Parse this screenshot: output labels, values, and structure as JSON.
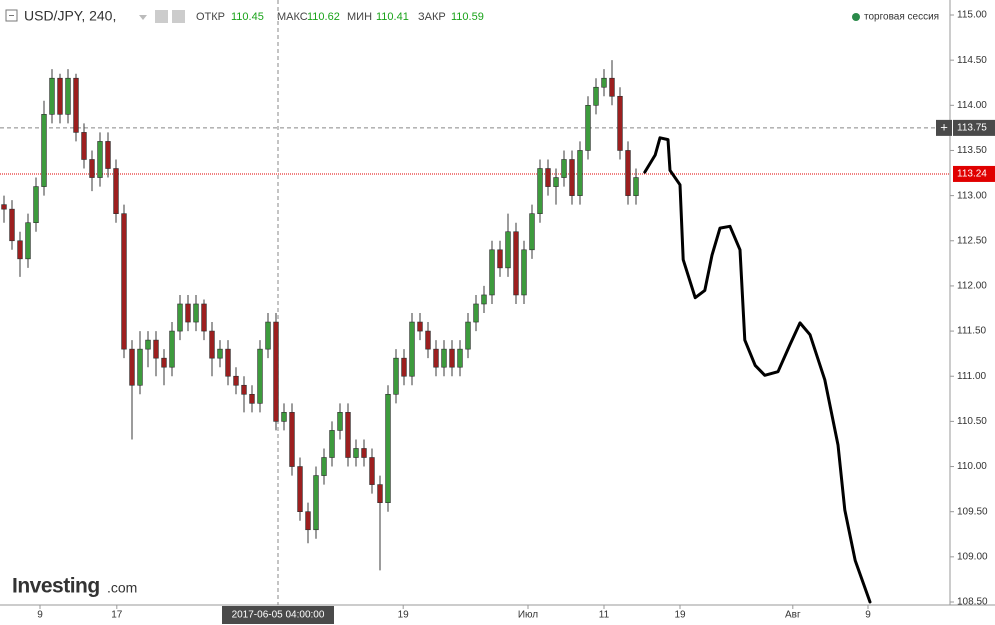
{
  "header": {
    "symbol": "USD/JPY, 240,",
    "open_label": "ОТКР",
    "open": 110.45,
    "high_label": "МАКС",
    "high": 110.62,
    "low_label": "МИН",
    "low": 110.41,
    "close_label": "ЗАКР",
    "close": 110.59,
    "session": "торговая сессия",
    "logo": "Investing",
    "logo_suffix": ".com"
  },
  "chart_data": {
    "type": "candlestick",
    "x": [
      0,
      1,
      2,
      3,
      4,
      5,
      6,
      7,
      8,
      9,
      10,
      11,
      12,
      13,
      14,
      15,
      16,
      17,
      18,
      19,
      20,
      21,
      22,
      23,
      24,
      25,
      26,
      27,
      28,
      29,
      30,
      31,
      32,
      33,
      34,
      35,
      36,
      37,
      38,
      39,
      40,
      41,
      42,
      43,
      44,
      45,
      46,
      47,
      48,
      49,
      50,
      51,
      52,
      53,
      54,
      55,
      56,
      57,
      58,
      59,
      60,
      61,
      62,
      63,
      64,
      65,
      66,
      67,
      68,
      69,
      70,
      71,
      72,
      73,
      74,
      75,
      76,
      77,
      78,
      79
    ],
    "open": [
      112.9,
      112.85,
      112.5,
      112.3,
      112.7,
      113.1,
      113.9,
      114.3,
      113.9,
      114.3,
      113.7,
      113.4,
      113.2,
      113.6,
      113.3,
      112.8,
      111.3,
      110.9,
      111.3,
      111.4,
      111.2,
      111.1,
      111.5,
      111.8,
      111.6,
      111.8,
      111.5,
      111.2,
      111.3,
      111.0,
      110.9,
      110.8,
      110.7,
      111.3,
      111.6,
      110.5,
      110.6,
      110.0,
      109.5,
      109.3,
      109.9,
      110.1,
      110.4,
      110.6,
      110.1,
      110.2,
      110.1,
      109.8,
      109.6,
      110.8,
      111.2,
      111.0,
      111.6,
      111.5,
      111.3,
      111.1,
      111.3,
      111.1,
      111.3,
      111.6,
      111.8,
      111.9,
      112.4,
      112.2,
      112.6,
      111.9,
      112.4,
      112.8,
      113.3,
      113.1,
      113.2,
      113.4,
      113.0,
      113.5,
      114.0,
      114.2,
      114.3,
      114.1,
      113.5,
      113.0
    ],
    "high": [
      113.0,
      112.95,
      112.6,
      112.8,
      113.2,
      114.05,
      114.4,
      114.35,
      114.4,
      114.35,
      113.8,
      113.5,
      113.7,
      113.7,
      113.4,
      112.9,
      111.4,
      111.5,
      111.5,
      111.5,
      111.3,
      111.6,
      111.9,
      111.9,
      111.9,
      111.85,
      111.6,
      111.4,
      111.4,
      111.1,
      111.0,
      110.9,
      111.4,
      111.7,
      111.7,
      110.7,
      110.7,
      110.1,
      109.6,
      110.0,
      110.2,
      110.5,
      110.7,
      110.7,
      110.3,
      110.3,
      110.2,
      109.9,
      110.9,
      111.3,
      111.3,
      111.7,
      111.7,
      111.6,
      111.4,
      111.4,
      111.4,
      111.4,
      111.7,
      111.9,
      112.0,
      112.5,
      112.5,
      112.8,
      112.7,
      112.5,
      112.9,
      113.4,
      113.4,
      113.3,
      113.5,
      113.5,
      113.6,
      114.1,
      114.3,
      114.4,
      114.5,
      114.2,
      113.6,
      113.3
    ],
    "low": [
      112.7,
      112.4,
      112.1,
      112.2,
      112.6,
      113.0,
      113.8,
      113.8,
      113.8,
      113.6,
      113.3,
      113.05,
      113.1,
      113.2,
      112.7,
      111.2,
      110.3,
      110.8,
      111.1,
      111.0,
      110.9,
      111.0,
      111.4,
      111.5,
      111.5,
      111.4,
      111.0,
      111.1,
      110.9,
      110.8,
      110.6,
      110.6,
      110.6,
      111.2,
      110.4,
      110.4,
      109.9,
      109.4,
      109.15,
      109.2,
      109.8,
      110.0,
      110.3,
      110.0,
      110.0,
      110.0,
      109.7,
      108.85,
      109.5,
      110.7,
      110.9,
      110.9,
      111.4,
      111.2,
      111.0,
      111.0,
      111.0,
      111.0,
      111.2,
      111.5,
      111.7,
      111.8,
      112.1,
      112.1,
      111.8,
      111.8,
      112.3,
      112.7,
      113.0,
      112.9,
      113.1,
      112.9,
      112.9,
      113.4,
      113.9,
      114.1,
      114.0,
      113.4,
      112.9,
      112.9
    ],
    "close": [
      112.85,
      112.5,
      112.3,
      112.7,
      113.1,
      113.9,
      114.3,
      113.9,
      114.3,
      113.7,
      113.4,
      113.2,
      113.6,
      113.3,
      112.8,
      111.3,
      110.9,
      111.3,
      111.4,
      111.2,
      111.1,
      111.5,
      111.8,
      111.6,
      111.8,
      111.5,
      111.2,
      111.3,
      111.0,
      110.9,
      110.8,
      110.7,
      111.3,
      111.6,
      110.5,
      110.6,
      110.0,
      109.5,
      109.3,
      109.9,
      110.1,
      110.4,
      110.6,
      110.1,
      110.2,
      110.1,
      109.8,
      109.6,
      110.8,
      111.2,
      111.0,
      111.6,
      111.5,
      111.3,
      111.1,
      111.3,
      111.1,
      111.3,
      111.6,
      111.8,
      111.9,
      112.4,
      112.2,
      112.6,
      111.9,
      112.4,
      112.8,
      113.3,
      113.1,
      113.2,
      113.4,
      113.0,
      113.5,
      114.0,
      114.2,
      114.3,
      114.1,
      113.5,
      113.0,
      113.2
    ],
    "up_color": "#3d9b3d",
    "down_color": "#9c1f1f",
    "wick_color": "#3a3a3a",
    "drawing": {
      "color": "#000000",
      "x": [
        80.1,
        81.4,
        82,
        83,
        83.25,
        84.5,
        84.9,
        86.4,
        87.6,
        88.5,
        89.5,
        90.75,
        92,
        92.6,
        93.9,
        95.1,
        96.75,
        98.25,
        99.5,
        100.75,
        102.6,
        104.25,
        105.1,
        106.4,
        108.25
      ],
      "values": [
        113.26,
        113.45,
        113.64,
        113.62,
        113.28,
        113.12,
        112.29,
        111.87,
        111.95,
        112.34,
        112.64,
        112.66,
        112.4,
        111.4,
        111.12,
        111.01,
        111.05,
        111.35,
        111.59,
        111.46,
        110.96,
        110.24,
        109.52,
        108.96,
        108.5
      ]
    },
    "xlim": [
      -0.5,
      118.25
    ],
    "xticks": [
      {
        "value": 4.5,
        "label": "9"
      },
      {
        "value": 14.1,
        "label": "17"
      },
      {
        "value": 49.9,
        "label": "19"
      },
      {
        "value": 65.5,
        "label": "Июл"
      },
      {
        "value": 75,
        "label": "11"
      },
      {
        "value": 84.5,
        "label": "19"
      },
      {
        "value": 98.6,
        "label": "Авг"
      },
      {
        "value": 108,
        "label": "9"
      }
    ],
    "ylim": [
      108.5,
      115.0
    ],
    "yticks": [
      {
        "value": 108.5,
        "label": "108.50"
      },
      {
        "value": 109,
        "label": "109.00"
      },
      {
        "value": 109.5,
        "label": "109.50"
      },
      {
        "value": 110,
        "label": "110.00"
      },
      {
        "value": 110.5,
        "label": "110.50"
      },
      {
        "value": 111,
        "label": "111.00"
      },
      {
        "value": 111.5,
        "label": "111.50"
      },
      {
        "value": 112,
        "label": "112.00"
      },
      {
        "value": 112.5,
        "label": "112.50"
      },
      {
        "value": 113,
        "label": "113.00"
      },
      {
        "value": 113.5,
        "label": "113.50"
      },
      {
        "value": 114,
        "label": "114.00"
      },
      {
        "value": 114.5,
        "label": "114.50"
      },
      {
        "value": 115,
        "label": "115.00"
      }
    ],
    "crosshair": {
      "x": 34.25,
      "x_label": "2017-06-05 04:00:00",
      "y": 113.75
    },
    "last_price": 113.24,
    "last_price_color": "#e00000"
  }
}
